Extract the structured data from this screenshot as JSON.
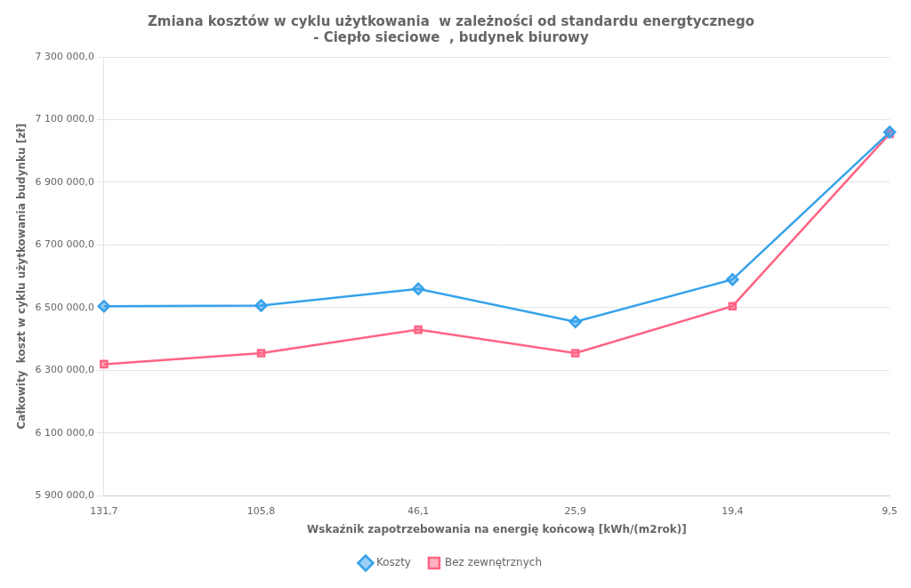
{
  "chart_data": {
    "type": "line",
    "title": "Zmiana kosztów w cyklu użytkowania  w zależności od standardu energtycznego\n- Ciepło sieciowe  , budynek biurowy",
    "x_label": "Wskaźnik zapotrzebowania na energię końcową [kWh/(m2rok)]",
    "y_label": "Całkowity  koszt w cyklu użytkowania budynku [zł]",
    "categories": [
      "131,7",
      "105,8",
      "46,1",
      "25,9",
      "19,4",
      "9,5"
    ],
    "series": [
      {
        "name": "Koszty",
        "marker": "diamond",
        "values": [
          6505000,
          6507000,
          6560000,
          6455000,
          6590000,
          7060000
        ]
      },
      {
        "name": "Bez zewnętrznych",
        "marker": "square",
        "values": [
          6320000,
          6355000,
          6430000,
          6355000,
          6505000,
          7055000
        ]
      }
    ],
    "ylim": [
      5900000,
      7300000
    ],
    "yticks": [
      {
        "value": 5900000,
        "label": "5 900 000,0"
      },
      {
        "value": 6100000,
        "label": "6 100 000,0"
      },
      {
        "value": 6300000,
        "label": "6 300 000,0"
      },
      {
        "value": 6500000,
        "label": "6 500 000,0"
      },
      {
        "value": 6700000,
        "label": "6 700 000,0"
      },
      {
        "value": 6900000,
        "label": "6 900 000,0"
      },
      {
        "value": 7100000,
        "label": "7 100 000,0"
      },
      {
        "value": 7300000,
        "label": "7 300 000,0"
      }
    ],
    "grid": true,
    "legend": "bottom"
  }
}
